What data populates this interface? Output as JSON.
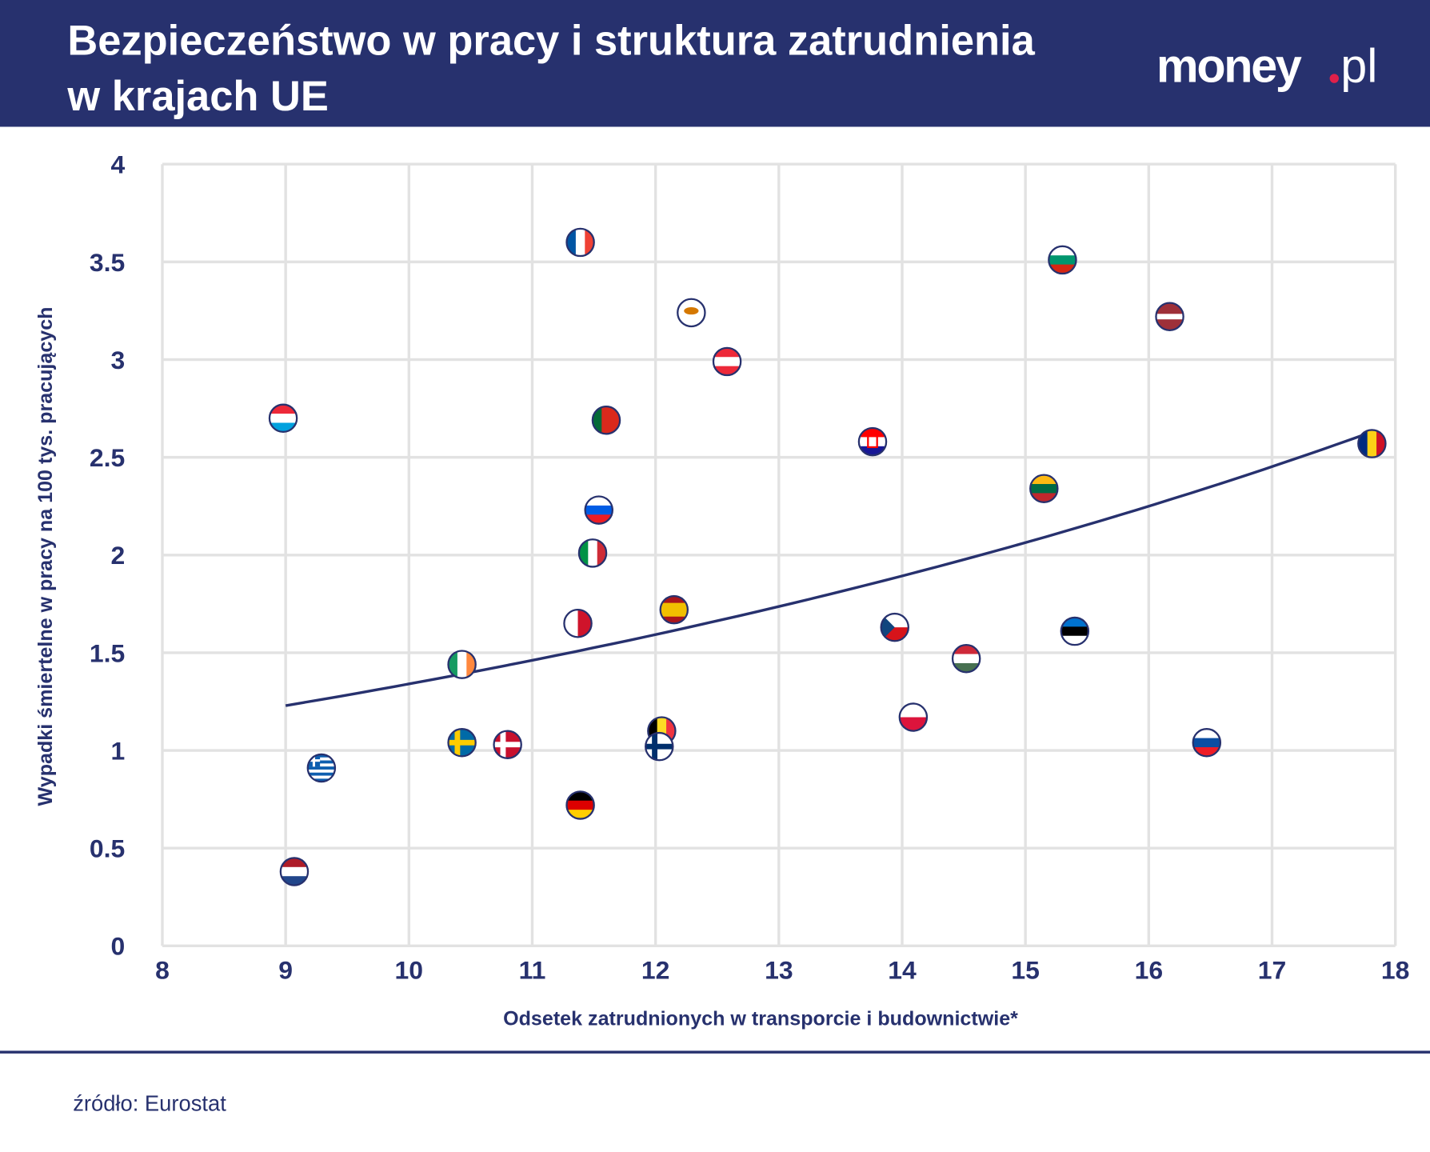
{
  "header": {
    "title_line1": "Bezpieczeństwo w pracy i struktura zatrudnienia",
    "title_line2": "w krajach UE",
    "logo": "money.pl",
    "background_color": "#27316e",
    "logo_dot_color": "#e0204a"
  },
  "footer": {
    "source": "źródło: Eurostat"
  },
  "chart_data": {
    "type": "scatter",
    "title": "Bezpieczeństwo w pracy i struktura zatrudnienia w krajach UE",
    "xlabel": "Odsetek zatrudnionych w transporcie i budownictwie*",
    "ylabel": "Wypadki śmiertelne w pracy na 100 tys. pracujących",
    "xlim": [
      8,
      18
    ],
    "ylim": [
      0,
      4
    ],
    "xticks": [
      "8",
      "9",
      "10",
      "11",
      "12",
      "13",
      "14",
      "15",
      "16",
      "17",
      "18"
    ],
    "yticks": [
      "0",
      "0.5",
      "1",
      "1.5",
      "2",
      "2.5",
      "3",
      "3.5",
      "4"
    ],
    "grid": true,
    "marker": "country-flag",
    "points": [
      {
        "flag": "flag-france-icon",
        "x": 11.39,
        "y": 3.6
      },
      {
        "flag": "flag-bulgaria-icon",
        "x": 15.3,
        "y": 3.51
      },
      {
        "flag": "flag-cyprus-icon",
        "x": 12.29,
        "y": 3.24
      },
      {
        "flag": "flag-latvia-icon",
        "x": 16.17,
        "y": 3.22
      },
      {
        "flag": "flag-austria-icon",
        "x": 12.58,
        "y": 2.99
      },
      {
        "flag": "flag-luxembourg-icon",
        "x": 8.98,
        "y": 2.7
      },
      {
        "flag": "flag-portugal-icon",
        "x": 11.6,
        "y": 2.69
      },
      {
        "flag": "flag-croatia-icon",
        "x": 13.76,
        "y": 2.58
      },
      {
        "flag": "flag-romania-icon",
        "x": 17.81,
        "y": 2.57
      },
      {
        "flag": "flag-lithuania-icon",
        "x": 15.15,
        "y": 2.34
      },
      {
        "flag": "flag-slovenia-icon",
        "x": 11.54,
        "y": 2.23
      },
      {
        "flag": "flag-italy-icon",
        "x": 11.49,
        "y": 2.01
      },
      {
        "flag": "flag-spain-icon",
        "x": 12.15,
        "y": 1.72
      },
      {
        "flag": "flag-malta-icon",
        "x": 11.37,
        "y": 1.65
      },
      {
        "flag": "flag-czechia-icon",
        "x": 13.94,
        "y": 1.63
      },
      {
        "flag": "flag-estonia-icon",
        "x": 15.4,
        "y": 1.61
      },
      {
        "flag": "flag-hungary-icon",
        "x": 14.52,
        "y": 1.47
      },
      {
        "flag": "flag-ireland-icon",
        "x": 10.43,
        "y": 1.44
      },
      {
        "flag": "flag-poland-icon",
        "x": 14.09,
        "y": 1.17
      },
      {
        "flag": "flag-belgium-icon",
        "x": 12.05,
        "y": 1.1
      },
      {
        "flag": "flag-sweden-icon",
        "x": 10.43,
        "y": 1.04
      },
      {
        "flag": "flag-denmark-icon",
        "x": 10.8,
        "y": 1.03
      },
      {
        "flag": "flag-finland-icon",
        "x": 12.03,
        "y": 1.02
      },
      {
        "flag": "flag-slovakia-icon",
        "x": 16.47,
        "y": 1.04
      },
      {
        "flag": "flag-greece-icon",
        "x": 9.29,
        "y": 0.91
      },
      {
        "flag": "flag-germany-icon",
        "x": 11.39,
        "y": 0.72
      },
      {
        "flag": "flag-netherlands-icon",
        "x": 9.07,
        "y": 0.38
      }
    ],
    "trendline": {
      "type": "exponential",
      "a": 0.5655,
      "b": 0.0863,
      "x_range": [
        9,
        17.81
      ],
      "color": "#27316e"
    }
  }
}
